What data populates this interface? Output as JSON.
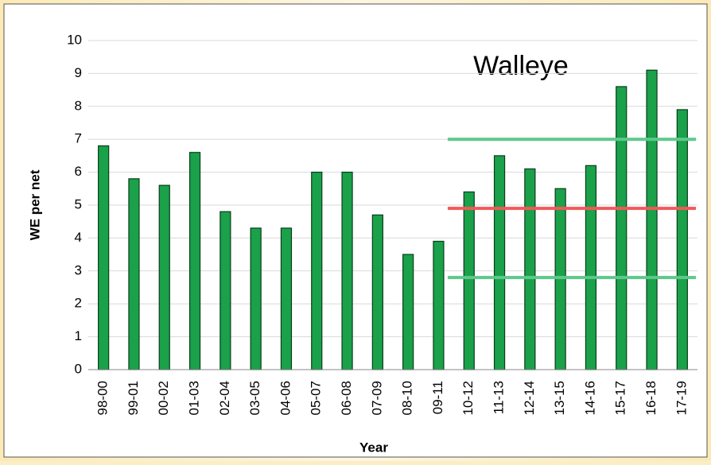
{
  "chart_data": {
    "type": "bar",
    "title": "Walleye",
    "x_label": "Year",
    "y_label": "WE per net",
    "categories": [
      "98-00",
      "99-01",
      "00-02",
      "01-03",
      "02-04",
      "03-05",
      "04-06",
      "05-07",
      "06-08",
      "07-09",
      "08-10",
      "09-11",
      "10-12",
      "11-13",
      "12-14",
      "13-15",
      "14-16",
      "15-17",
      "16-18",
      "17-19"
    ],
    "values": [
      6.8,
      5.8,
      5.6,
      6.6,
      4.8,
      4.3,
      4.3,
      6.0,
      6.0,
      4.7,
      3.5,
      3.9,
      5.4,
      6.5,
      6.1,
      5.5,
      6.2,
      8.6,
      9.1,
      7.9
    ],
    "color": "#1aa14a",
    "ylim": [
      0,
      10
    ],
    "yticks": [
      0,
      1,
      2,
      3,
      4,
      5,
      6,
      7,
      8,
      9,
      10
    ],
    "grid": true,
    "reference_lines": [
      {
        "value": 7.0,
        "color": "#5cc98a",
        "from_category": "09-11"
      },
      {
        "value": 4.9,
        "color": "#f05a5a",
        "from_category": "09-11"
      },
      {
        "value": 2.8,
        "color": "#5cc98a",
        "from_category": "09-11"
      }
    ]
  }
}
